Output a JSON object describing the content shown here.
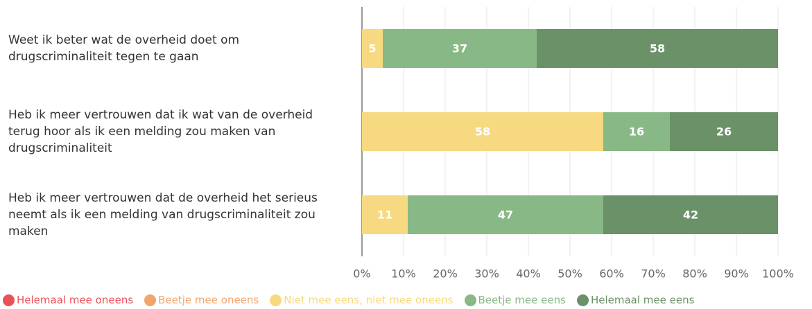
{
  "chart_data": {
    "type": "stacked-bar-horizontal",
    "categories": [
      "Weet ik beter wat de overheid doet om drugscriminaliteit tegen te gaan",
      "Heb ik meer vertrouwen dat ik wat van de overheid terug hoor als ik een melding zou maken van drugscriminaliteit",
      "Heb ik meer vertrouwen dat de overheid het serieus neemt als ik een melding van drugscriminaliteit zou maken"
    ],
    "series": [
      {
        "name": "Helemaal mee oneens",
        "color": "#e9505a",
        "values": [
          0,
          0,
          0
        ]
      },
      {
        "name": "Beetje mee oneens",
        "color": "#f2a56b",
        "values": [
          0,
          0,
          0
        ]
      },
      {
        "name": "Niet mee eens, niet mee oneens",
        "color": "#f6d981",
        "values": [
          5,
          58,
          11
        ]
      },
      {
        "name": "Beetje mee eens",
        "color": "#88b886",
        "values": [
          37,
          16,
          47
        ]
      },
      {
        "name": "Helemaal mee eens",
        "color": "#6a9168",
        "values": [
          58,
          26,
          42
        ]
      }
    ],
    "xlim": [
      0,
      100
    ],
    "xticks": [
      {
        "value": 0,
        "label": "0%"
      },
      {
        "value": 10,
        "label": "10%"
      },
      {
        "value": 20,
        "label": "20%"
      },
      {
        "value": 30,
        "label": "30%"
      },
      {
        "value": 40,
        "label": "40%"
      },
      {
        "value": 50,
        "label": "50%"
      },
      {
        "value": 60,
        "label": "60%"
      },
      {
        "value": 70,
        "label": "70%"
      },
      {
        "value": 80,
        "label": "80%"
      },
      {
        "value": 90,
        "label": "90%"
      },
      {
        "value": 100,
        "label": "100%"
      }
    ],
    "grid": true
  }
}
